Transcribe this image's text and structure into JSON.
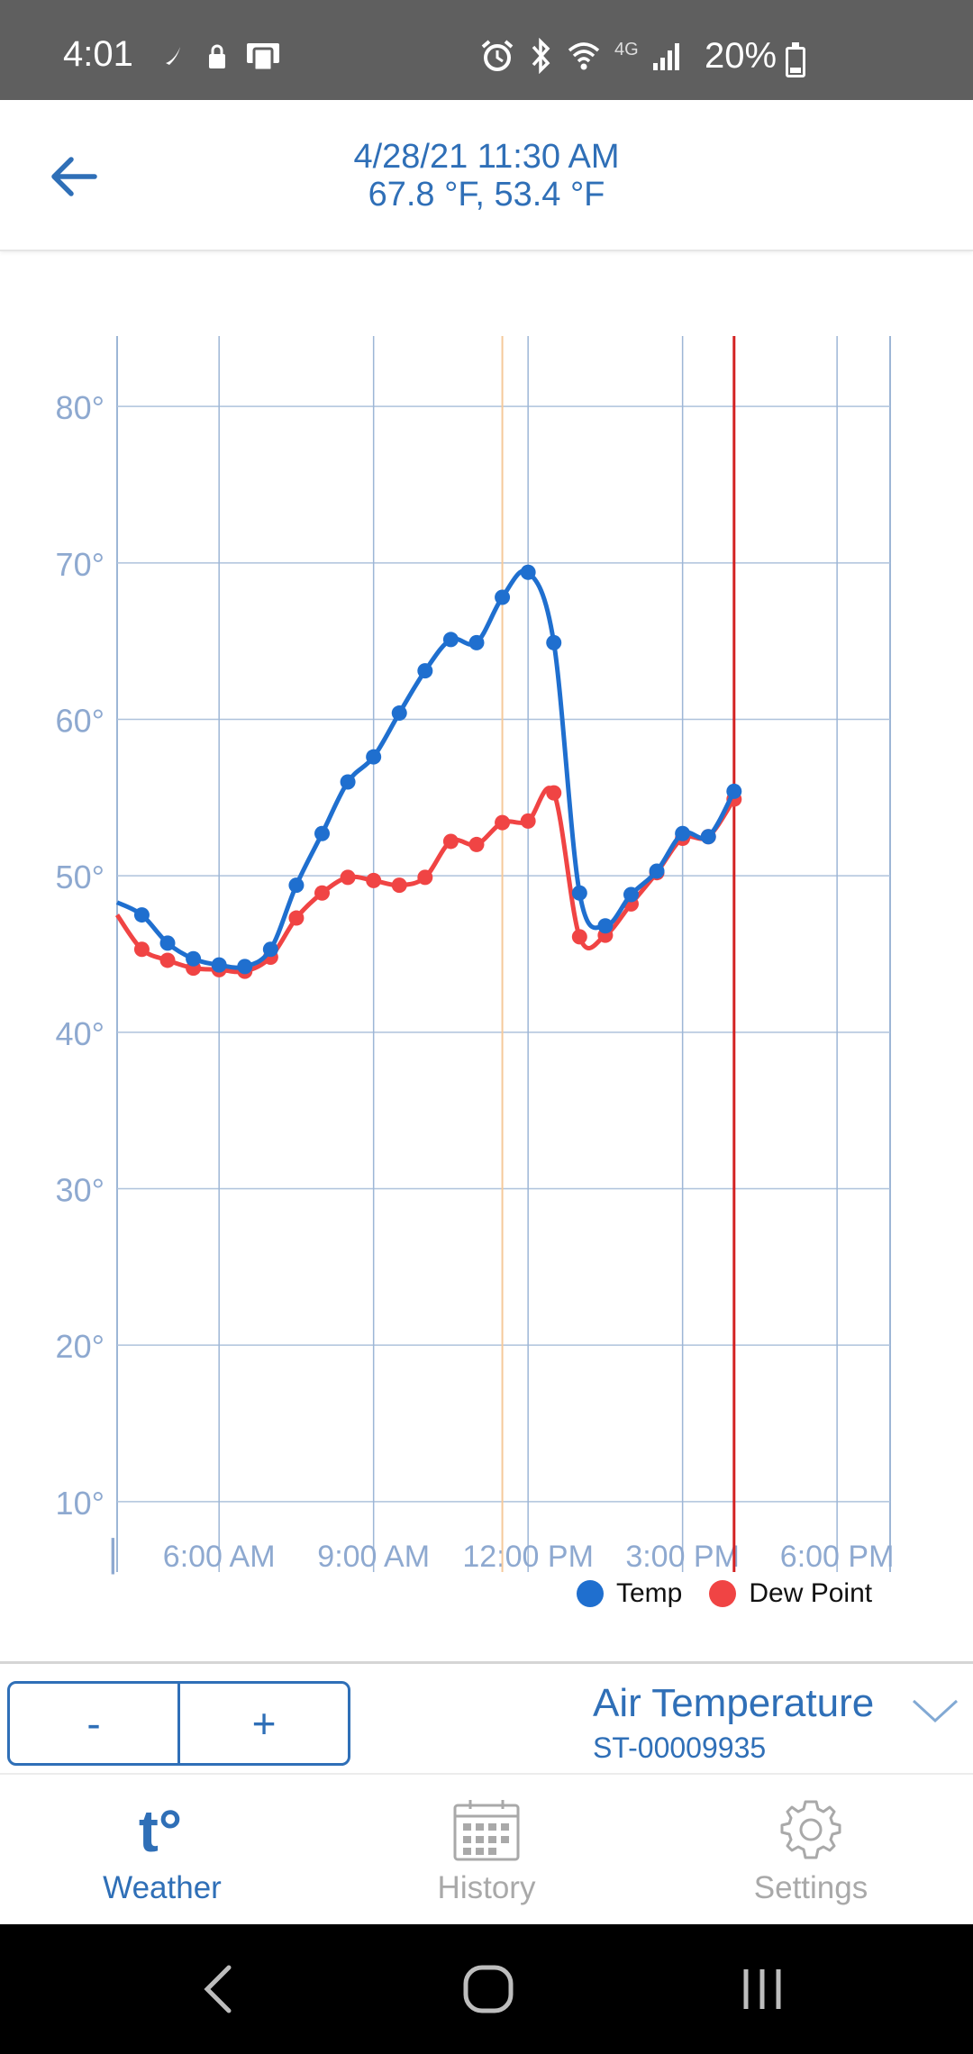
{
  "status_bar": {
    "time": "4:01",
    "battery_percent": "20%",
    "network_label": "4G",
    "icons": [
      "nfc-icon",
      "lock-icon",
      "cast-icon",
      "alarm-icon",
      "bluetooth-icon",
      "wifi-icon",
      "signal-icon",
      "battery-icon"
    ]
  },
  "header": {
    "datetime": "4/28/21 11:30 AM",
    "readings": "67.8 °F, 53.4 °F"
  },
  "chart_data": {
    "type": "line",
    "y_ticks": [
      "80°",
      "70°",
      "60°",
      "50°",
      "40°",
      "30°",
      "20°",
      "10°"
    ],
    "y_tick_values": [
      80,
      70,
      60,
      50,
      40,
      30,
      20,
      10
    ],
    "x_ticks": [
      "6:00 AM",
      "9:00 AM",
      "12:00 PM",
      "3:00 PM",
      "6:00 PM"
    ],
    "x_tick_hours": [
      6,
      9,
      12,
      15,
      18
    ],
    "ylim": [
      5.5,
      84.5
    ],
    "xlim_hours": [
      4.02,
      19.03
    ],
    "grid": true,
    "legend_position": "bottom-right",
    "cursor_hour": 11.5,
    "now_hour": 16.0,
    "cursor_color": "#f5c99a",
    "now_color": "#d32222",
    "series": [
      {
        "name": "Temp",
        "color": "#1f6fcf",
        "x_hours": [
          4.02,
          4.5,
          5.0,
          5.5,
          6.0,
          6.5,
          7.0,
          7.5,
          8.0,
          8.5,
          9.0,
          9.5,
          10.0,
          10.5,
          11.0,
          11.5,
          12.0,
          12.5,
          13.0,
          13.5,
          14.0,
          14.5,
          15.0,
          15.5,
          16.0
        ],
        "values": [
          48.3,
          47.5,
          45.7,
          44.7,
          44.3,
          44.2,
          45.3,
          49.4,
          52.7,
          56.0,
          57.6,
          60.4,
          63.1,
          65.1,
          64.9,
          67.8,
          69.4,
          64.9,
          48.9,
          46.8,
          48.8,
          50.3,
          52.7,
          52.5,
          55.4
        ]
      },
      {
        "name": "Dew Point",
        "color": "#f04444",
        "x_hours": [
          4.02,
          4.5,
          5.0,
          5.5,
          6.0,
          6.5,
          7.0,
          7.5,
          8.0,
          8.5,
          9.0,
          9.5,
          10.0,
          10.5,
          11.0,
          11.5,
          12.0,
          12.5,
          13.0,
          13.5,
          14.0,
          14.5,
          15.0,
          15.5,
          16.0
        ],
        "values": [
          47.5,
          45.3,
          44.6,
          44.1,
          44.0,
          43.9,
          44.8,
          47.3,
          48.9,
          49.9,
          49.7,
          49.4,
          49.9,
          52.2,
          52.0,
          53.4,
          53.5,
          55.3,
          46.1,
          46.2,
          48.2,
          50.2,
          52.4,
          52.5,
          54.9
        ]
      }
    ]
  },
  "legend": {
    "temp_label": "Temp",
    "dew_label": "Dew Point",
    "temp_color": "#1f6fcf",
    "dew_color": "#f04444"
  },
  "controls": {
    "zoom_out_label": "-",
    "zoom_in_label": "+",
    "sensor_title": "Air Temperature",
    "sensor_id": "ST-00009935"
  },
  "bottom_nav": {
    "weather_label": "Weather",
    "weather_icon_text": "t°",
    "history_label": "History",
    "settings_label": "Settings",
    "active_color": "#2f6fb7",
    "inactive_color": "#a9a9a9"
  }
}
